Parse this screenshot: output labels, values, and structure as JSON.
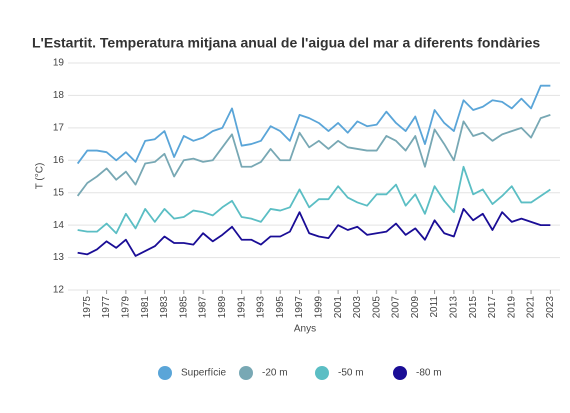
{
  "chart_data": {
    "type": "line",
    "title": "L'Estartit. Temperatura mitjana anual de l'aigua del mar a diferents fondàries",
    "x_label": "Anys",
    "y_label": "T (°C)",
    "x": [
      1974,
      1975,
      1976,
      1977,
      1978,
      1979,
      1980,
      1981,
      1982,
      1983,
      1984,
      1985,
      1986,
      1987,
      1988,
      1989,
      1990,
      1991,
      1992,
      1993,
      1994,
      1995,
      1996,
      1997,
      1998,
      1999,
      2000,
      2001,
      2002,
      2003,
      2004,
      2005,
      2006,
      2007,
      2008,
      2009,
      2010,
      2011,
      2012,
      2013,
      2014,
      2015,
      2016,
      2017,
      2018,
      2019,
      2020,
      2021,
      2022,
      2023
    ],
    "series": [
      {
        "name": "Superfície",
        "color": "#5aa5d8",
        "values": [
          15.9,
          16.3,
          16.3,
          16.25,
          16.0,
          16.25,
          15.95,
          16.6,
          16.65,
          16.9,
          16.1,
          16.75,
          16.6,
          16.7,
          16.9,
          17.0,
          17.6,
          16.45,
          16.5,
          16.6,
          17.05,
          16.9,
          16.6,
          17.4,
          17.3,
          17.15,
          16.9,
          17.15,
          16.85,
          17.2,
          17.05,
          17.1,
          17.5,
          17.15,
          16.9,
          17.35,
          16.5,
          17.55,
          17.15,
          16.9,
          17.85,
          17.55,
          17.65,
          17.85,
          17.8,
          17.6,
          17.9,
          17.6,
          18.3,
          18.3
        ]
      },
      {
        "name": "-20 m",
        "color": "#78a8b4",
        "values": [
          14.9,
          15.3,
          15.5,
          15.75,
          15.4,
          15.65,
          15.25,
          15.9,
          15.95,
          16.2,
          15.5,
          16.0,
          16.05,
          15.95,
          16.0,
          16.4,
          16.8,
          15.8,
          15.8,
          15.95,
          16.35,
          16.0,
          16.0,
          16.85,
          16.4,
          16.6,
          16.35,
          16.6,
          16.4,
          16.35,
          16.3,
          16.3,
          16.75,
          16.6,
          16.3,
          16.75,
          15.8,
          16.95,
          16.5,
          16.0,
          17.2,
          16.75,
          16.85,
          16.6,
          16.8,
          16.9,
          17.0,
          16.7,
          17.3,
          17.4
        ]
      },
      {
        "name": "-50 m",
        "color": "#5bbec4",
        "values": [
          13.85,
          13.8,
          13.8,
          14.05,
          13.75,
          14.35,
          13.9,
          14.5,
          14.1,
          14.5,
          14.2,
          14.25,
          14.45,
          14.4,
          14.3,
          14.55,
          14.75,
          14.25,
          14.2,
          14.1,
          14.5,
          14.45,
          14.55,
          15.1,
          14.55,
          14.8,
          14.8,
          15.2,
          14.85,
          14.7,
          14.6,
          14.95,
          14.95,
          15.25,
          14.6,
          14.95,
          14.35,
          15.2,
          14.75,
          14.4,
          15.8,
          14.95,
          15.1,
          14.65,
          14.9,
          15.2,
          14.7,
          14.7,
          14.9,
          15.1
        ]
      },
      {
        "name": "-80 m",
        "color": "#1a0d96",
        "values": [
          13.15,
          13.1,
          13.25,
          13.5,
          13.3,
          13.55,
          13.05,
          13.2,
          13.35,
          13.65,
          13.45,
          13.45,
          13.4,
          13.75,
          13.5,
          13.7,
          13.95,
          13.55,
          13.55,
          13.4,
          13.65,
          13.65,
          13.8,
          14.4,
          13.75,
          13.65,
          13.6,
          14.0,
          13.85,
          13.95,
          13.7,
          13.75,
          13.8,
          14.05,
          13.7,
          13.9,
          13.55,
          14.15,
          13.75,
          13.65,
          14.5,
          14.15,
          14.35,
          13.85,
          14.4,
          14.1,
          14.2,
          14.1,
          14.0,
          14.0
        ]
      }
    ],
    "xlim": [
      1973,
      2024
    ],
    "xticks": [
      1975,
      1977,
      1979,
      1981,
      1983,
      1985,
      1987,
      1989,
      1991,
      1993,
      1995,
      1997,
      1999,
      2001,
      2003,
      2005,
      2007,
      2009,
      2011,
      2013,
      2015,
      2017,
      2019,
      2021,
      2023
    ],
    "ylim": [
      12,
      19
    ],
    "yticks": [
      12,
      13,
      14,
      15,
      16,
      17,
      18,
      19
    ],
    "grid": true
  }
}
